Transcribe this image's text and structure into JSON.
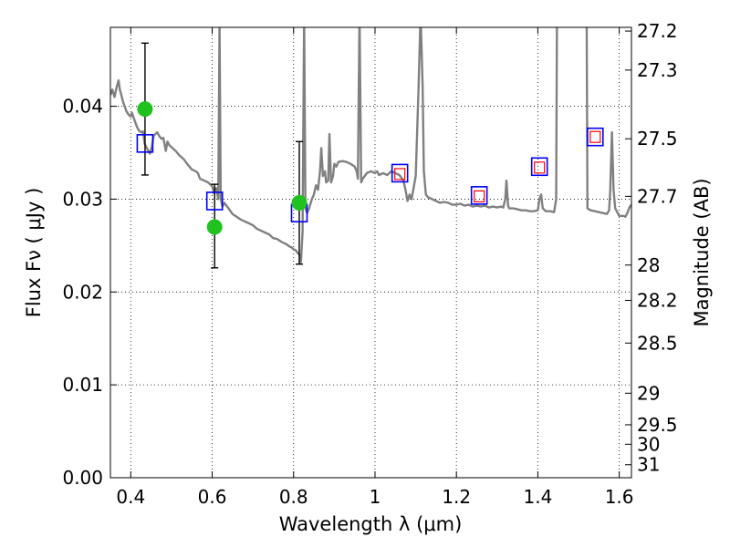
{
  "chart_data": {
    "type": "line",
    "title": "",
    "xlabel": "Wavelength  λ (μm)",
    "ylabel": "Flux  Fν  ( μJy )",
    "ylabel_right": "Magnitude (AB)",
    "xlim": [
      0.35,
      1.63
    ],
    "ylim": [
      0.0,
      0.0485
    ],
    "grid": true,
    "grid_style": "dotted",
    "x_ticks": [
      0.4,
      0.6,
      0.8,
      1.0,
      1.2,
      1.4,
      1.6
    ],
    "x_tick_labels": [
      "0.4",
      "0.6",
      "0.8",
      "1",
      "1.2",
      "1.4",
      "1.6"
    ],
    "y_ticks": [
      0.0,
      0.01,
      0.02,
      0.03,
      0.04
    ],
    "y_tick_labels": [
      "0.00",
      "0.01",
      "0.02",
      "0.03",
      "0.04"
    ],
    "right_ticks": [
      {
        "label": "27.2",
        "flux": 0.0481
      },
      {
        "label": "27.3",
        "flux": 0.0439
      },
      {
        "label": "27.5",
        "flux": 0.0365
      },
      {
        "label": "27.7",
        "flux": 0.0303
      },
      {
        "label": "28",
        "flux": 0.0229
      },
      {
        "label": "28.2",
        "flux": 0.0191
      },
      {
        "label": "28.5",
        "flux": 0.0145
      },
      {
        "label": "29",
        "flux": 0.0091
      },
      {
        "label": "29.5",
        "flux": 0.0057
      },
      {
        "label": "30",
        "flux": 0.0036
      },
      {
        "label": "31",
        "flux": 0.0014
      }
    ],
    "colors": {
      "model": "#808080",
      "observed": "#1fc21f",
      "model_photometry": "#0000ff",
      "inner_photometry": "#ff0000",
      "errorbar": "#000000"
    },
    "series": [
      {
        "kind": "model_spectrum",
        "points": [
          [
            0.35,
            0.0412
          ],
          [
            0.355,
            0.0418
          ],
          [
            0.36,
            0.041
          ],
          [
            0.365,
            0.042
          ],
          [
            0.37,
            0.0428
          ],
          [
            0.373,
            0.0418
          ],
          [
            0.377,
            0.0412
          ],
          [
            0.381,
            0.0405
          ],
          [
            0.385,
            0.04
          ],
          [
            0.389,
            0.0395
          ],
          [
            0.393,
            0.0392
          ],
          [
            0.397,
            0.039
          ],
          [
            0.4,
            0.0389
          ],
          [
            0.403,
            0.0393
          ],
          [
            0.407,
            0.0388
          ],
          [
            0.41,
            0.0384
          ],
          [
            0.415,
            0.0378
          ],
          [
            0.42,
            0.0374
          ],
          [
            0.425,
            0.0372
          ],
          [
            0.43,
            0.0373
          ],
          [
            0.434,
            0.036
          ],
          [
            0.438,
            0.0356
          ],
          [
            0.443,
            0.0352
          ],
          [
            0.447,
            0.0349
          ],
          [
            0.452,
            0.0357
          ],
          [
            0.456,
            0.0368
          ],
          [
            0.46,
            0.037
          ],
          [
            0.465,
            0.0372
          ],
          [
            0.47,
            0.0368
          ],
          [
            0.475,
            0.0365
          ],
          [
            0.48,
            0.0366
          ],
          [
            0.486,
            0.0352
          ],
          [
            0.49,
            0.0362
          ],
          [
            0.495,
            0.0358
          ],
          [
            0.5,
            0.0356
          ],
          [
            0.51,
            0.0352
          ],
          [
            0.52,
            0.0347
          ],
          [
            0.53,
            0.0343
          ],
          [
            0.54,
            0.0337
          ],
          [
            0.55,
            0.0332
          ],
          [
            0.56,
            0.033
          ],
          [
            0.565,
            0.0328
          ],
          [
            0.57,
            0.0322
          ],
          [
            0.58,
            0.032
          ],
          [
            0.59,
            0.0318
          ],
          [
            0.6,
            0.0314
          ],
          [
            0.605,
            0.0306
          ],
          [
            0.61,
            0.0312
          ],
          [
            0.615,
            0.03
          ],
          [
            0.618,
            0.049
          ],
          [
            0.621,
            0.03
          ],
          [
            0.625,
            0.0292
          ],
          [
            0.63,
            0.0296
          ],
          [
            0.64,
            0.029
          ],
          [
            0.65,
            0.0284
          ],
          [
            0.66,
            0.0281
          ],
          [
            0.67,
            0.0278
          ],
          [
            0.68,
            0.0276
          ],
          [
            0.69,
            0.0274
          ],
          [
            0.7,
            0.0272
          ],
          [
            0.71,
            0.0268
          ],
          [
            0.72,
            0.0266
          ],
          [
            0.73,
            0.0264
          ],
          [
            0.74,
            0.0262
          ],
          [
            0.75,
            0.0258
          ],
          [
            0.76,
            0.0257
          ],
          [
            0.77,
            0.0254
          ],
          [
            0.78,
            0.0252
          ],
          [
            0.79,
            0.0249
          ],
          [
            0.795,
            0.0248
          ],
          [
            0.8,
            0.0246
          ],
          [
            0.805,
            0.0245
          ],
          [
            0.81,
            0.0242
          ],
          [
            0.815,
            0.024
          ],
          [
            0.818,
            0.0232
          ],
          [
            0.822,
            0.0265
          ],
          [
            0.826,
            0.05
          ],
          [
            0.829,
            0.029
          ],
          [
            0.833,
            0.0285
          ],
          [
            0.838,
            0.029
          ],
          [
            0.845,
            0.03
          ],
          [
            0.85,
            0.0305
          ],
          [
            0.855,
            0.0315
          ],
          [
            0.86,
            0.031
          ],
          [
            0.865,
            0.033
          ],
          [
            0.868,
            0.0355
          ],
          [
            0.872,
            0.0325
          ],
          [
            0.877,
            0.033
          ],
          [
            0.88,
            0.0318
          ],
          [
            0.885,
            0.032
          ],
          [
            0.888,
            0.037
          ],
          [
            0.892,
            0.0318
          ],
          [
            0.897,
            0.0325
          ],
          [
            0.9,
            0.0338
          ],
          [
            0.905,
            0.0335
          ],
          [
            0.91,
            0.034
          ],
          [
            0.92,
            0.0341
          ],
          [
            0.93,
            0.034
          ],
          [
            0.94,
            0.0338
          ],
          [
            0.95,
            0.0335
          ],
          [
            0.955,
            0.033
          ],
          [
            0.958,
            0.0322
          ],
          [
            0.962,
            0.05
          ],
          [
            0.966,
            0.0318
          ],
          [
            0.97,
            0.0322
          ],
          [
            0.98,
            0.0328
          ],
          [
            0.99,
            0.033
          ],
          [
            1.0,
            0.0328
          ],
          [
            1.005,
            0.033
          ],
          [
            1.01,
            0.0326
          ],
          [
            1.02,
            0.0328
          ],
          [
            1.03,
            0.0326
          ],
          [
            1.04,
            0.033
          ],
          [
            1.05,
            0.0328
          ],
          [
            1.06,
            0.0326
          ],
          [
            1.07,
            0.032
          ],
          [
            1.075,
            0.031
          ],
          [
            1.08,
            0.0298
          ],
          [
            1.085,
            0.0305
          ],
          [
            1.09,
            0.03
          ],
          [
            1.1,
            0.0325
          ],
          [
            1.107,
            0.042
          ],
          [
            1.112,
            0.05
          ],
          [
            1.117,
            0.042
          ],
          [
            1.12,
            0.033
          ],
          [
            1.125,
            0.0305
          ],
          [
            1.13,
            0.0302
          ],
          [
            1.14,
            0.03
          ],
          [
            1.15,
            0.0298
          ],
          [
            1.16,
            0.0296
          ],
          [
            1.17,
            0.0297
          ],
          [
            1.18,
            0.0296
          ],
          [
            1.19,
            0.0294
          ],
          [
            1.2,
            0.0294
          ],
          [
            1.21,
            0.0295
          ],
          [
            1.22,
            0.0293
          ],
          [
            1.23,
            0.0294
          ],
          [
            1.24,
            0.0292
          ],
          [
            1.25,
            0.0293
          ],
          [
            1.26,
            0.0292
          ],
          [
            1.27,
            0.0293
          ],
          [
            1.28,
            0.0291
          ],
          [
            1.29,
            0.0292
          ],
          [
            1.3,
            0.0291
          ],
          [
            1.31,
            0.0292
          ],
          [
            1.315,
            0.0291
          ],
          [
            1.32,
            0.03
          ],
          [
            1.323,
            0.032
          ],
          [
            1.327,
            0.0293
          ],
          [
            1.33,
            0.029
          ],
          [
            1.34,
            0.029
          ],
          [
            1.35,
            0.0289
          ],
          [
            1.36,
            0.0288
          ],
          [
            1.37,
            0.0288
          ],
          [
            1.38,
            0.0287
          ],
          [
            1.39,
            0.0287
          ],
          [
            1.4,
            0.0288
          ],
          [
            1.404,
            0.03
          ],
          [
            1.408,
            0.0305
          ],
          [
            1.412,
            0.029
          ],
          [
            1.42,
            0.0287
          ],
          [
            1.43,
            0.0287
          ],
          [
            1.44,
            0.0286
          ],
          [
            1.445,
            0.03
          ],
          [
            1.447,
            0.05
          ],
          [
            1.52,
            0.05
          ],
          [
            1.522,
            0.029
          ],
          [
            1.53,
            0.0288
          ],
          [
            1.54,
            0.0287
          ],
          [
            1.55,
            0.0286
          ],
          [
            1.56,
            0.0285
          ],
          [
            1.57,
            0.0284
          ],
          [
            1.575,
            0.0288
          ],
          [
            1.578,
            0.031
          ],
          [
            1.582,
            0.0372
          ],
          [
            1.586,
            0.031
          ],
          [
            1.59,
            0.029
          ],
          [
            1.6,
            0.0282
          ],
          [
            1.61,
            0.0282
          ],
          [
            1.615,
            0.0281
          ],
          [
            1.62,
            0.0285
          ],
          [
            1.625,
            0.0291
          ],
          [
            1.63,
            0.0294
          ]
        ]
      },
      {
        "kind": "observed_photometry",
        "points": [
          {
            "x": 0.435,
            "y": 0.0397,
            "err_low": 0.0326,
            "err_high": 0.0468
          },
          {
            "x": 0.606,
            "y": 0.027,
            "err_low": 0.0226,
            "err_high": 0.0316
          },
          {
            "x": 0.814,
            "y": 0.0296,
            "err_low": 0.023,
            "err_high": 0.0362
          }
        ]
      },
      {
        "kind": "model_photometry",
        "points": [
          {
            "x": 0.435,
            "y": 0.036
          },
          {
            "x": 0.606,
            "y": 0.0298
          },
          {
            "x": 0.814,
            "y": 0.0285
          },
          {
            "x": 1.061,
            "y": 0.0328
          },
          {
            "x": 1.256,
            "y": 0.0304
          },
          {
            "x": 1.404,
            "y": 0.0335
          },
          {
            "x": 1.541,
            "y": 0.0367
          }
        ]
      },
      {
        "kind": "model_photometry_inner",
        "points": [
          {
            "x": 1.061,
            "y": 0.0327
          },
          {
            "x": 1.256,
            "y": 0.0303
          },
          {
            "x": 1.404,
            "y": 0.0334
          },
          {
            "x": 1.541,
            "y": 0.0367
          }
        ]
      }
    ]
  }
}
